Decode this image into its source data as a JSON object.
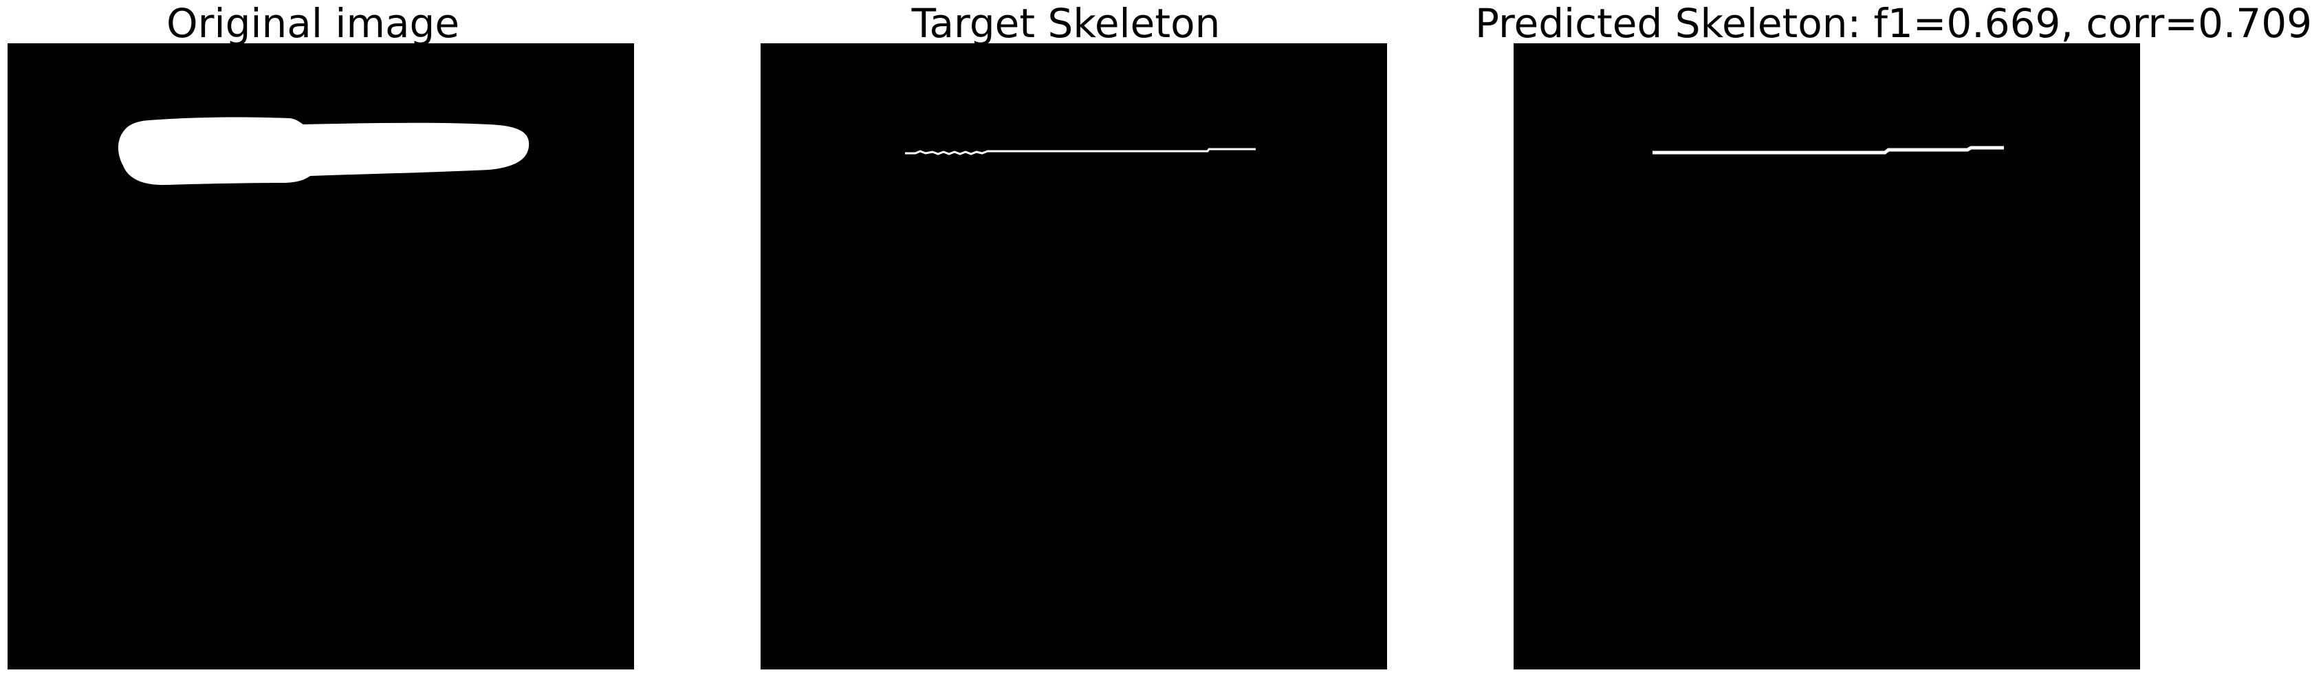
{
  "figure": {
    "panels": [
      {
        "id": "original",
        "title": "Original image"
      },
      {
        "id": "target",
        "title": "Target Skeleton"
      },
      {
        "id": "predicted",
        "title": "Predicted Skeleton: f1=0.669, corr=0.709"
      }
    ]
  },
  "colors": {
    "background": "#000000",
    "foreground": "#ffffff",
    "page": "#ffffff",
    "text": "#000000"
  }
}
